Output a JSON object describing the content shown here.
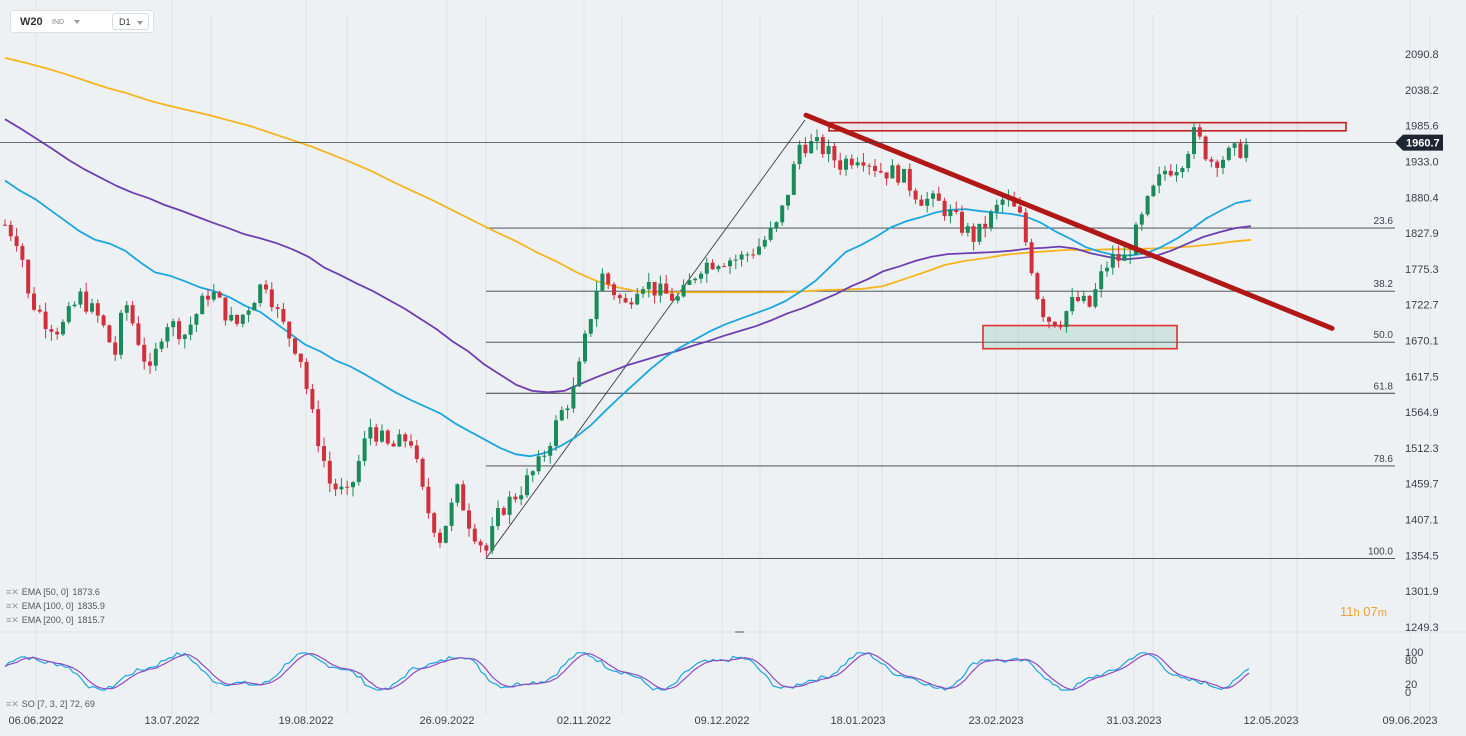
{
  "header": {
    "symbol": "W20",
    "market": "IND",
    "timeframe": "D1"
  },
  "price_axis": {
    "ticks": [
      "2090.8",
      "2038.2",
      "1985.6",
      "1933.0",
      "1880.4",
      "1827.9",
      "1775.3",
      "1722.7",
      "1670.1",
      "1617.5",
      "1564.9",
      "1512.3",
      "1459.7",
      "1407.1",
      "1354.5",
      "1301.9",
      "1249.3"
    ]
  },
  "current_price": {
    "label": "1960.7",
    "value": 1960.7,
    "color": "#1e2430"
  },
  "date_axis": {
    "ticks": [
      "06.06.2022",
      "13.07.2022",
      "19.08.2022",
      "26.09.2022",
      "02.11.2022",
      "09.12.2022",
      "18.01.2023",
      "23.02.2023",
      "31.03.2023",
      "12.05.2023",
      "09.06.2023"
    ]
  },
  "fibonacci": {
    "levels": [
      "23.6",
      "38.2",
      "50.0",
      "61.8",
      "78.6",
      "100.0"
    ],
    "low": 1350,
    "high": 1985
  },
  "indicators": [
    {
      "label": "EMA [50, 0]",
      "value": "1873.6",
      "color": "#1ba6e0"
    },
    {
      "label": "EMA [100, 0]",
      "value": "1835.9",
      "color": "#6e3eb0"
    },
    {
      "label": "EMA [200, 0]",
      "value": "1815.7",
      "color": "#f5b520"
    }
  ],
  "oscillator": {
    "label": "SO [7, 3, 2] 72, 69",
    "ticks": [
      "100",
      "80",
      "20",
      "0"
    ]
  },
  "timer": {
    "hours": "11",
    "h": "h",
    "minutes": "07",
    "m": "m"
  },
  "colors": {
    "up": "#1a8a5a",
    "down": "#d0303c",
    "trendline": "#b01818",
    "zone": "#e03030"
  },
  "chart_data": {
    "type": "candlestick",
    "y_range": [
      1249.3,
      2090.8
    ],
    "osc_range": [
      0,
      100
    ],
    "resistance_zone": [
      1978,
      1990
    ],
    "support_zone": [
      1658,
      1692
    ],
    "trendline": {
      "from": 1995,
      "to": 1688
    },
    "ema50": [
      1905,
      1890,
      1878,
      1862,
      1846,
      1830,
      1818,
      1812,
      1802,
      1785,
      1770,
      1765,
      1757,
      1748,
      1742,
      1733,
      1721,
      1712,
      1696,
      1680,
      1664,
      1654,
      1641,
      1632,
      1620,
      1607,
      1594,
      1583,
      1573,
      1563,
      1548,
      1536,
      1524,
      1512,
      1503,
      1500,
      1505,
      1515,
      1528,
      1545,
      1567,
      1588,
      1608,
      1628,
      1646,
      1660,
      1672,
      1684,
      1694,
      1702,
      1710,
      1718,
      1728,
      1742,
      1758,
      1779,
      1800,
      1810,
      1822,
      1836,
      1845,
      1851,
      1858,
      1862,
      1863,
      1860,
      1858,
      1856,
      1852,
      1843,
      1830,
      1819,
      1807,
      1800,
      1795,
      1795,
      1798,
      1807,
      1819,
      1833,
      1849,
      1861,
      1872,
      1876
    ],
    "ema100": [
      1995,
      1981,
      1966,
      1951,
      1935,
      1921,
      1909,
      1897,
      1887,
      1879,
      1869,
      1861,
      1852,
      1843,
      1835,
      1826,
      1820,
      1813,
      1804,
      1793,
      1777,
      1766,
      1754,
      1743,
      1730,
      1717,
      1702,
      1687,
      1669,
      1654,
      1635,
      1620,
      1605,
      1596,
      1594,
      1596,
      1606,
      1616,
      1625,
      1634,
      1641,
      1648,
      1654,
      1662,
      1669,
      1677,
      1684,
      1691,
      1700,
      1710,
      1718,
      1728,
      1738,
      1750,
      1760,
      1772,
      1779,
      1787,
      1793,
      1797,
      1798,
      1799,
      1800,
      1802,
      1805,
      1806,
      1808,
      1805,
      1798,
      1793,
      1789,
      1791,
      1794,
      1802,
      1812,
      1822,
      1829,
      1835,
      1838
    ],
    "ema200": [
      2085,
      2078,
      2070,
      2061,
      2051,
      2041,
      2033,
      2023,
      2015,
      2008,
      2001,
      1993,
      1985,
      1975,
      1965,
      1955,
      1943,
      1931,
      1918,
      1903,
      1889,
      1875,
      1860,
      1845,
      1830,
      1816,
      1800,
      1786,
      1770,
      1757,
      1748,
      1742,
      1741,
      1741,
      1741,
      1741,
      1741,
      1741,
      1741,
      1742,
      1744,
      1745,
      1746,
      1750,
      1760,
      1770,
      1781,
      1787,
      1791,
      1796,
      1799,
      1801,
      1803,
      1803,
      1804,
      1804,
      1805,
      1806,
      1808,
      1811,
      1815,
      1818
    ]
  }
}
